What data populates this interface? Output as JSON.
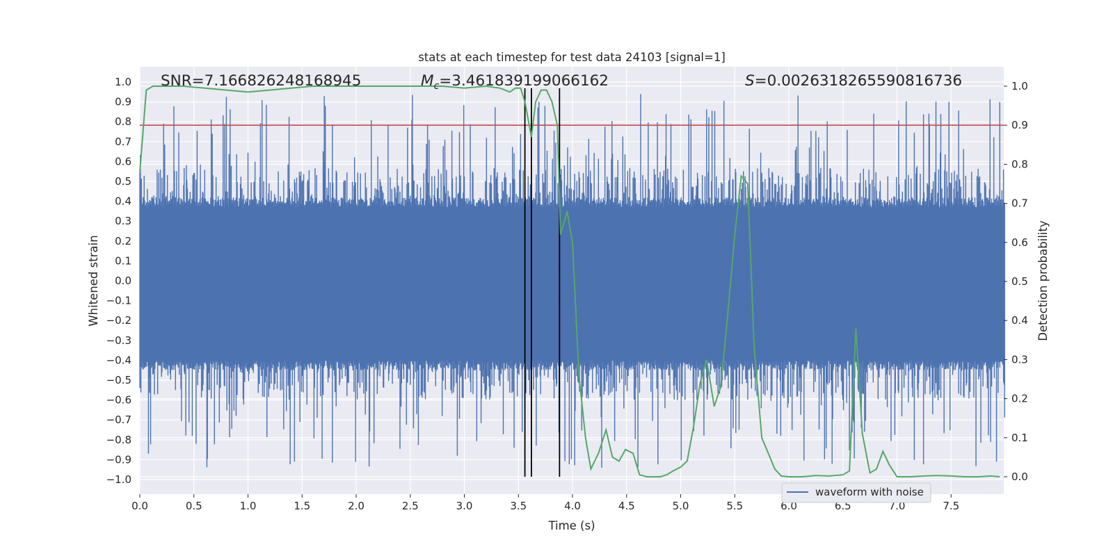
{
  "chart_data": {
    "type": "line",
    "title": "stats at each timestep for test data 24103 [signal=1]",
    "xlabel": "Time (s)",
    "ylabel": "Whitened strain",
    "y2label": "Detection probability",
    "xlim": [
      0.0,
      8.0
    ],
    "ylim": [
      -1.1,
      1.1
    ],
    "y2lim": [
      -0.05,
      1.05
    ],
    "x_ticks": [
      "0.0",
      "0.5",
      "1.0",
      "1.5",
      "2.0",
      "2.5",
      "3.0",
      "3.5",
      "4.0",
      "4.5",
      "5.0",
      "5.5",
      "6.0",
      "6.5",
      "7.0",
      "7.5"
    ],
    "y_ticks": [
      "1.0",
      "0.9",
      "0.8",
      "0.7",
      "0.6",
      "0.5",
      "0.4",
      "0.3",
      "0.2",
      "0.1",
      "0.0",
      "-0.1",
      "-0.2",
      "-0.3",
      "-0.4",
      "-0.5",
      "-0.6",
      "-0.7",
      "-0.8",
      "-0.9",
      "-1.0"
    ],
    "y2_ticks": [
      "1.0",
      "0.9",
      "0.8",
      "0.7",
      "0.6",
      "0.5",
      "0.4",
      "0.3",
      "0.2",
      "0.1",
      "0.0"
    ],
    "annotations": {
      "snr": "SNR=7.166826248168945",
      "mc_symbol": "M",
      "mc_subscript": "c",
      "mc_value": "=3.461839199066162",
      "s_symbol": "S",
      "s_value": "=0.0026318265590816736"
    },
    "legend": {
      "label": "waveform with noise",
      "location": "lower-right"
    },
    "threshold_line": {
      "value": 0.9,
      "axis": "right"
    },
    "vertical_lines_s": [
      3.56,
      3.62,
      3.88
    ],
    "waveform": {
      "name": "waveform with noise",
      "sample_count": 1600,
      "dense_band": [
        -0.4,
        0.37
      ],
      "approx_range": [
        -0.95,
        0.95
      ]
    },
    "series": [
      {
        "name": "detection probability",
        "axis": "right",
        "x": [
          0.0,
          0.06,
          0.12,
          0.2,
          0.4,
          0.6,
          0.8,
          1.0,
          1.2,
          1.4,
          1.6,
          1.8,
          2.0,
          2.2,
          2.4,
          2.6,
          2.8,
          3.0,
          3.2,
          3.33,
          3.42,
          3.47,
          3.52,
          3.56,
          3.62,
          3.66,
          3.71,
          3.76,
          3.81,
          3.86,
          3.89,
          3.95,
          4.0,
          4.06,
          4.12,
          4.17,
          4.24,
          4.31,
          4.37,
          4.43,
          4.49,
          4.56,
          4.62,
          4.69,
          4.81,
          4.87,
          4.93,
          5.0,
          5.06,
          5.12,
          5.18,
          5.24,
          5.31,
          5.37,
          5.43,
          5.5,
          5.56,
          5.62,
          5.68,
          5.75,
          5.81,
          5.87,
          5.93,
          6.0,
          6.12,
          6.25,
          6.37,
          6.5,
          6.56,
          6.62,
          6.68,
          6.75,
          6.81,
          6.87,
          6.93,
          7.0,
          7.12,
          7.25,
          7.37,
          7.5,
          7.62,
          7.75,
          7.87,
          7.95
        ],
        "values": [
          0.78,
          0.99,
          1.0,
          1.0,
          1.0,
          0.995,
          0.99,
          0.985,
          0.99,
          0.995,
          1.0,
          1.0,
          1.0,
          1.0,
          1.0,
          1.0,
          1.0,
          0.995,
          1.0,
          0.995,
          0.985,
          0.995,
          0.995,
          0.96,
          0.87,
          0.96,
          0.99,
          0.99,
          0.96,
          0.9,
          0.62,
          0.68,
          0.6,
          0.26,
          0.1,
          0.02,
          0.06,
          0.12,
          0.05,
          0.04,
          0.07,
          0.06,
          0.005,
          0.0,
          0.0,
          0.005,
          0.015,
          0.025,
          0.04,
          0.13,
          0.24,
          0.3,
          0.18,
          0.23,
          0.4,
          0.62,
          0.77,
          0.75,
          0.33,
          0.1,
          0.06,
          0.02,
          0.002,
          0.0,
          0.0,
          0.003,
          0.002,
          0.005,
          0.015,
          0.38,
          0.11,
          0.01,
          0.02,
          0.065,
          0.03,
          0.0,
          0.0,
          0.002,
          0.003,
          0.002,
          0.0,
          0.0,
          0.002,
          0.0
        ]
      }
    ]
  }
}
